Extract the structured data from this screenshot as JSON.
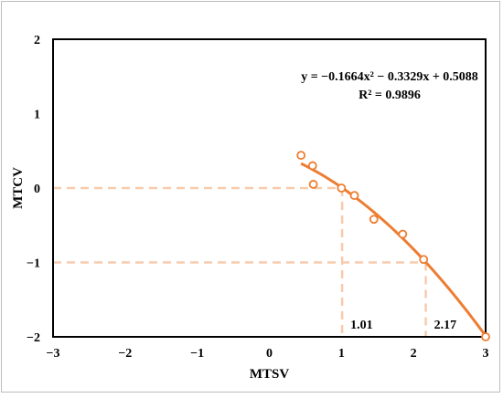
{
  "chart_data": {
    "type": "scatter",
    "title": "",
    "xlabel": "MTSV",
    "ylabel": "MTCV",
    "xlim": [
      -3,
      3
    ],
    "ylim": [
      -2,
      2
    ],
    "x_ticks": [
      "−3",
      "−2",
      "−1",
      "0",
      "1",
      "2",
      "3"
    ],
    "y_ticks": [
      "−2",
      "−1",
      "0",
      "1",
      "2"
    ],
    "grid": false,
    "legend": "none",
    "points": {
      "x": [
        0.44,
        0.6,
        0.61,
        1.0,
        1.18,
        1.45,
        1.85,
        2.14,
        3.0
      ],
      "y": [
        0.44,
        0.3,
        0.05,
        0.0,
        -0.1,
        -0.42,
        -0.62,
        -0.96,
        -2.0
      ]
    },
    "trendline": {
      "a": -0.1664,
      "b": -0.3329,
      "c": 0.5088,
      "x_range": [
        0.44,
        3.0
      ],
      "equation": "y = −0.1664x² − 0.3329x + 0.5088",
      "r2": "R² = 0.9896"
    },
    "guides": [
      {
        "x": 1.01,
        "y": 0,
        "label": "1.01"
      },
      {
        "x": 2.17,
        "y": -1,
        "label": "2.17"
      }
    ],
    "colors": {
      "series": "#ED7D31",
      "guide": "#F8CBAD",
      "axis": "#000000"
    }
  }
}
